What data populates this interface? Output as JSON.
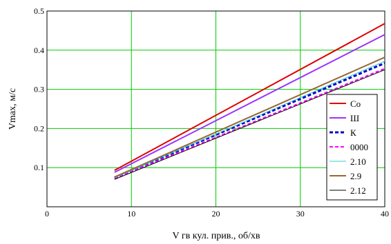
{
  "chart_data": {
    "type": "line",
    "xlabel": "V гв кул. прив., об/хв",
    "ylabel": "Vmax, м/с",
    "xlim": [
      0,
      40
    ],
    "ylim": [
      0,
      0.5
    ],
    "x_ticks": [
      "0",
      "10",
      "20",
      "30",
      "40"
    ],
    "y_ticks": [
      "0.1",
      "0.2",
      "0.3",
      "0.4",
      "0.5"
    ],
    "grid": true,
    "grid_color": "#00cc00",
    "legend_position": "right",
    "x": [
      8,
      40
    ],
    "series": [
      {
        "name": "Co",
        "values": [
          0.093,
          0.468
        ],
        "color": "#e00000",
        "style": "solid",
        "width": 2
      },
      {
        "name": "Ш",
        "values": [
          0.088,
          0.44
        ],
        "color": "#9933ff",
        "style": "solid",
        "width": 2
      },
      {
        "name": "К",
        "values": [
          0.074,
          0.367
        ],
        "color": "#0000cc",
        "style": "dashed",
        "width": 3
      },
      {
        "name": "0000",
        "values": [
          0.072,
          0.353
        ],
        "color": "#ff00ff",
        "style": "dashed",
        "width": 2
      },
      {
        "name": "2.10",
        "values": [
          0.074,
          0.372
        ],
        "color": "#33cccc",
        "style": "solid",
        "width": 1
      },
      {
        "name": "2.9",
        "values": [
          0.076,
          0.382
        ],
        "color": "#996633",
        "style": "solid",
        "width": 2
      },
      {
        "name": "2.12",
        "values": [
          0.07,
          0.35
        ],
        "color": "#000000",
        "style": "solid",
        "width": 1
      }
    ]
  }
}
